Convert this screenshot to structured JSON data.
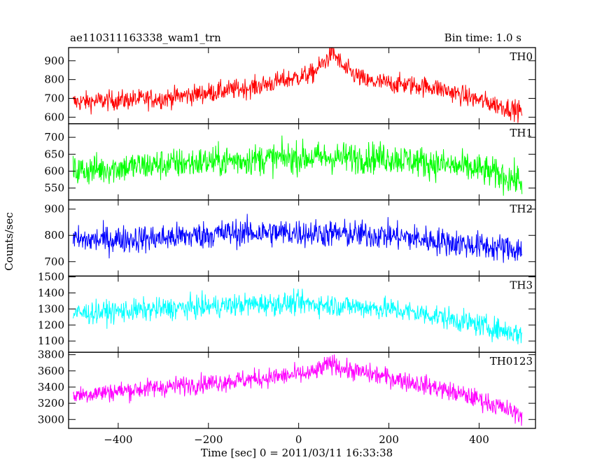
{
  "chart_data": {
    "type": "line",
    "title": "ae110311163338_wam1_trn",
    "bin_time_label": "Bin time: 1.0 s",
    "xlabel": "Time [sec] 0 = 2011/03/11 16:33:38",
    "ylabel": "Counts/sec",
    "xlim": [
      -510,
      525
    ],
    "x_ticks": [
      -400,
      -200,
      0,
      200,
      400
    ],
    "x_tick_labels": [
      "−400",
      "−200",
      "0",
      "200",
      "400"
    ],
    "x_data_range": [
      -500,
      495
    ],
    "bin_time_s": 1.0,
    "grid": false,
    "legend": "none",
    "panels": [
      {
        "name": "TH0",
        "color": "#ff0000",
        "ylim": [
          565,
          970
        ],
        "y_ticks": [
          600,
          700,
          800,
          900
        ],
        "y_tick_labels": [
          "600",
          "700",
          "800",
          "900"
        ],
        "trend": [
          [
            -500,
            680
          ],
          [
            -300,
            700
          ],
          [
            -100,
            760
          ],
          [
            30,
            830
          ],
          [
            60,
            900
          ],
          [
            75,
            950
          ],
          [
            100,
            860
          ],
          [
            150,
            790
          ],
          [
            300,
            760
          ],
          [
            400,
            690
          ],
          [
            495,
            630
          ]
        ],
        "noise": 38
      },
      {
        "name": "TH1",
        "color": "#00ff00",
        "ylim": [
          515,
          740
        ],
        "y_ticks": [
          550,
          600,
          650,
          700
        ],
        "y_tick_labels": [
          "550",
          "600",
          "650",
          "700"
        ],
        "trend": [
          [
            -500,
            600
          ],
          [
            -300,
            620
          ],
          [
            -100,
            635
          ],
          [
            0,
            640
          ],
          [
            200,
            640
          ],
          [
            400,
            605
          ],
          [
            495,
            570
          ]
        ],
        "noise": 33
      },
      {
        "name": "TH2",
        "color": "#0000ff",
        "ylim": [
          645,
          935
        ],
        "y_ticks": [
          700,
          800,
          900
        ],
        "y_tick_labels": [
          "700",
          "800",
          "900"
        ],
        "trend": [
          [
            -500,
            780
          ],
          [
            -300,
            790
          ],
          [
            -150,
            810
          ],
          [
            0,
            810
          ],
          [
            200,
            800
          ],
          [
            400,
            760
          ],
          [
            495,
            745
          ]
        ],
        "noise": 38
      },
      {
        "name": "TH3",
        "color": "#00ffff",
        "ylim": [
          1030,
          1505
        ],
        "y_ticks": [
          1100,
          1200,
          1300,
          1400,
          1500
        ],
        "y_tick_labels": [
          "1100",
          "1200",
          "1300",
          "1400",
          "1500"
        ],
        "trend": [
          [
            -500,
            1270
          ],
          [
            -300,
            1300
          ],
          [
            -100,
            1330
          ],
          [
            0,
            1335
          ],
          [
            100,
            1320
          ],
          [
            200,
            1300
          ],
          [
            300,
            1260
          ],
          [
            400,
            1200
          ],
          [
            495,
            1140
          ]
        ],
        "noise": 50
      },
      {
        "name": "TH0123",
        "color": "#ff00ff",
        "ylim": [
          2890,
          3830
        ],
        "y_ticks": [
          3000,
          3200,
          3400,
          3600,
          3800
        ],
        "y_tick_labels": [
          "3000",
          "3200",
          "3400",
          "3600",
          "3800"
        ],
        "trend": [
          [
            -500,
            3300
          ],
          [
            -300,
            3400
          ],
          [
            -100,
            3500
          ],
          [
            30,
            3570
          ],
          [
            60,
            3660
          ],
          [
            75,
            3700
          ],
          [
            100,
            3620
          ],
          [
            200,
            3520
          ],
          [
            300,
            3400
          ],
          [
            400,
            3250
          ],
          [
            495,
            3050
          ]
        ],
        "noise": 85
      }
    ]
  }
}
